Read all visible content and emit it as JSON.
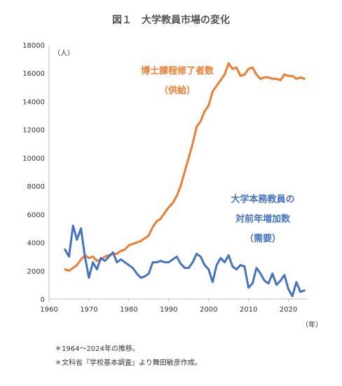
{
  "chart_data": {
    "type": "line",
    "title": "図１　大学教員市場の変化",
    "ylabel": "（人）",
    "xlabel": "（年）",
    "xlim": [
      1960,
      2025
    ],
    "ylim": [
      0,
      18000
    ],
    "xticks": [
      1960,
      1970,
      1980,
      1990,
      2000,
      2010,
      2020
    ],
    "yticks": [
      0,
      2000,
      4000,
      6000,
      8000,
      10000,
      12000,
      14000,
      16000,
      18000
    ],
    "grid": false,
    "legend": "inline",
    "x": [
      1964,
      1965,
      1966,
      1967,
      1968,
      1969,
      1970,
      1971,
      1972,
      1973,
      1974,
      1975,
      1976,
      1977,
      1978,
      1979,
      1980,
      1981,
      1982,
      1983,
      1984,
      1985,
      1986,
      1987,
      1988,
      1989,
      1990,
      1991,
      1992,
      1993,
      1994,
      1995,
      1996,
      1997,
      1998,
      1999,
      2000,
      2001,
      2002,
      2003,
      2004,
      2005,
      2006,
      2007,
      2008,
      2009,
      2010,
      2011,
      2012,
      2013,
      2014,
      2015,
      2016,
      2017,
      2018,
      2019,
      2020,
      2021,
      2022,
      2023,
      2024
    ],
    "series": [
      {
        "name": "博士課程修了者数",
        "sublabel": "（供給）",
        "color": "#ED7D31",
        "values": [
          2100,
          2000,
          2200,
          2400,
          2800,
          3100,
          2900,
          3000,
          2700,
          2800,
          3000,
          3100,
          3200,
          3200,
          3400,
          3500,
          3800,
          3900,
          4000,
          4100,
          4300,
          4500,
          5100,
          5500,
          5700,
          6100,
          6500,
          6800,
          7300,
          8000,
          9000,
          10000,
          11000,
          12200,
          12600,
          13300,
          13700,
          14700,
          15100,
          15500,
          15900,
          16700,
          16300,
          16400,
          15800,
          15900,
          16300,
          16400,
          15900,
          15600,
          15700,
          15700,
          15600,
          15600,
          15500,
          15900,
          15800,
          15800,
          15600,
          15700,
          15600
        ]
      },
      {
        "name": "大学本務教員の",
        "name2": "対前年増加数",
        "sublabel": "（需要）",
        "color": "#4472C4",
        "values": [
          3500,
          3000,
          5200,
          4200,
          5000,
          3000,
          1500,
          2600,
          2100,
          2900,
          2700,
          3000,
          3300,
          2600,
          2800,
          2600,
          2400,
          2200,
          1800,
          1500,
          1600,
          1800,
          2600,
          2600,
          2700,
          2600,
          2600,
          2800,
          3000,
          2500,
          2200,
          2200,
          2600,
          3200,
          3000,
          2400,
          2100,
          1200,
          2400,
          2900,
          2600,
          3100,
          2300,
          2100,
          2400,
          2300,
          800,
          1100,
          2200,
          1800,
          1300,
          1100,
          1800,
          1000,
          1300,
          1700,
          700,
          200,
          1200,
          500,
          600
        ]
      }
    ]
  },
  "notes": [
    "＊1964〜2024年の推移。",
    "＊文科省『学校基本調査』より舞田敏彦作成。"
  ]
}
